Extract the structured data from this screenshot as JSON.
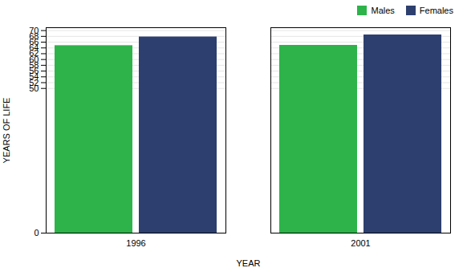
{
  "chart_data": {
    "type": "bar",
    "categories": [
      "1996",
      "2001"
    ],
    "series": [
      {
        "name": "Males",
        "color": "#2db34a",
        "values": [
          64.8,
          64.9
        ]
      },
      {
        "name": "Females",
        "color": "#2d3f6e",
        "values": [
          67.8,
          68.5
        ]
      }
    ],
    "xlabel": "YEAR",
    "ylabel": "YEARS OF LIFE",
    "ylim": [
      0,
      71
    ],
    "yticks": [
      0,
      50,
      52,
      54,
      56,
      58,
      60,
      62,
      64,
      66,
      68,
      70
    ],
    "grid": true,
    "legend": "upper right"
  }
}
